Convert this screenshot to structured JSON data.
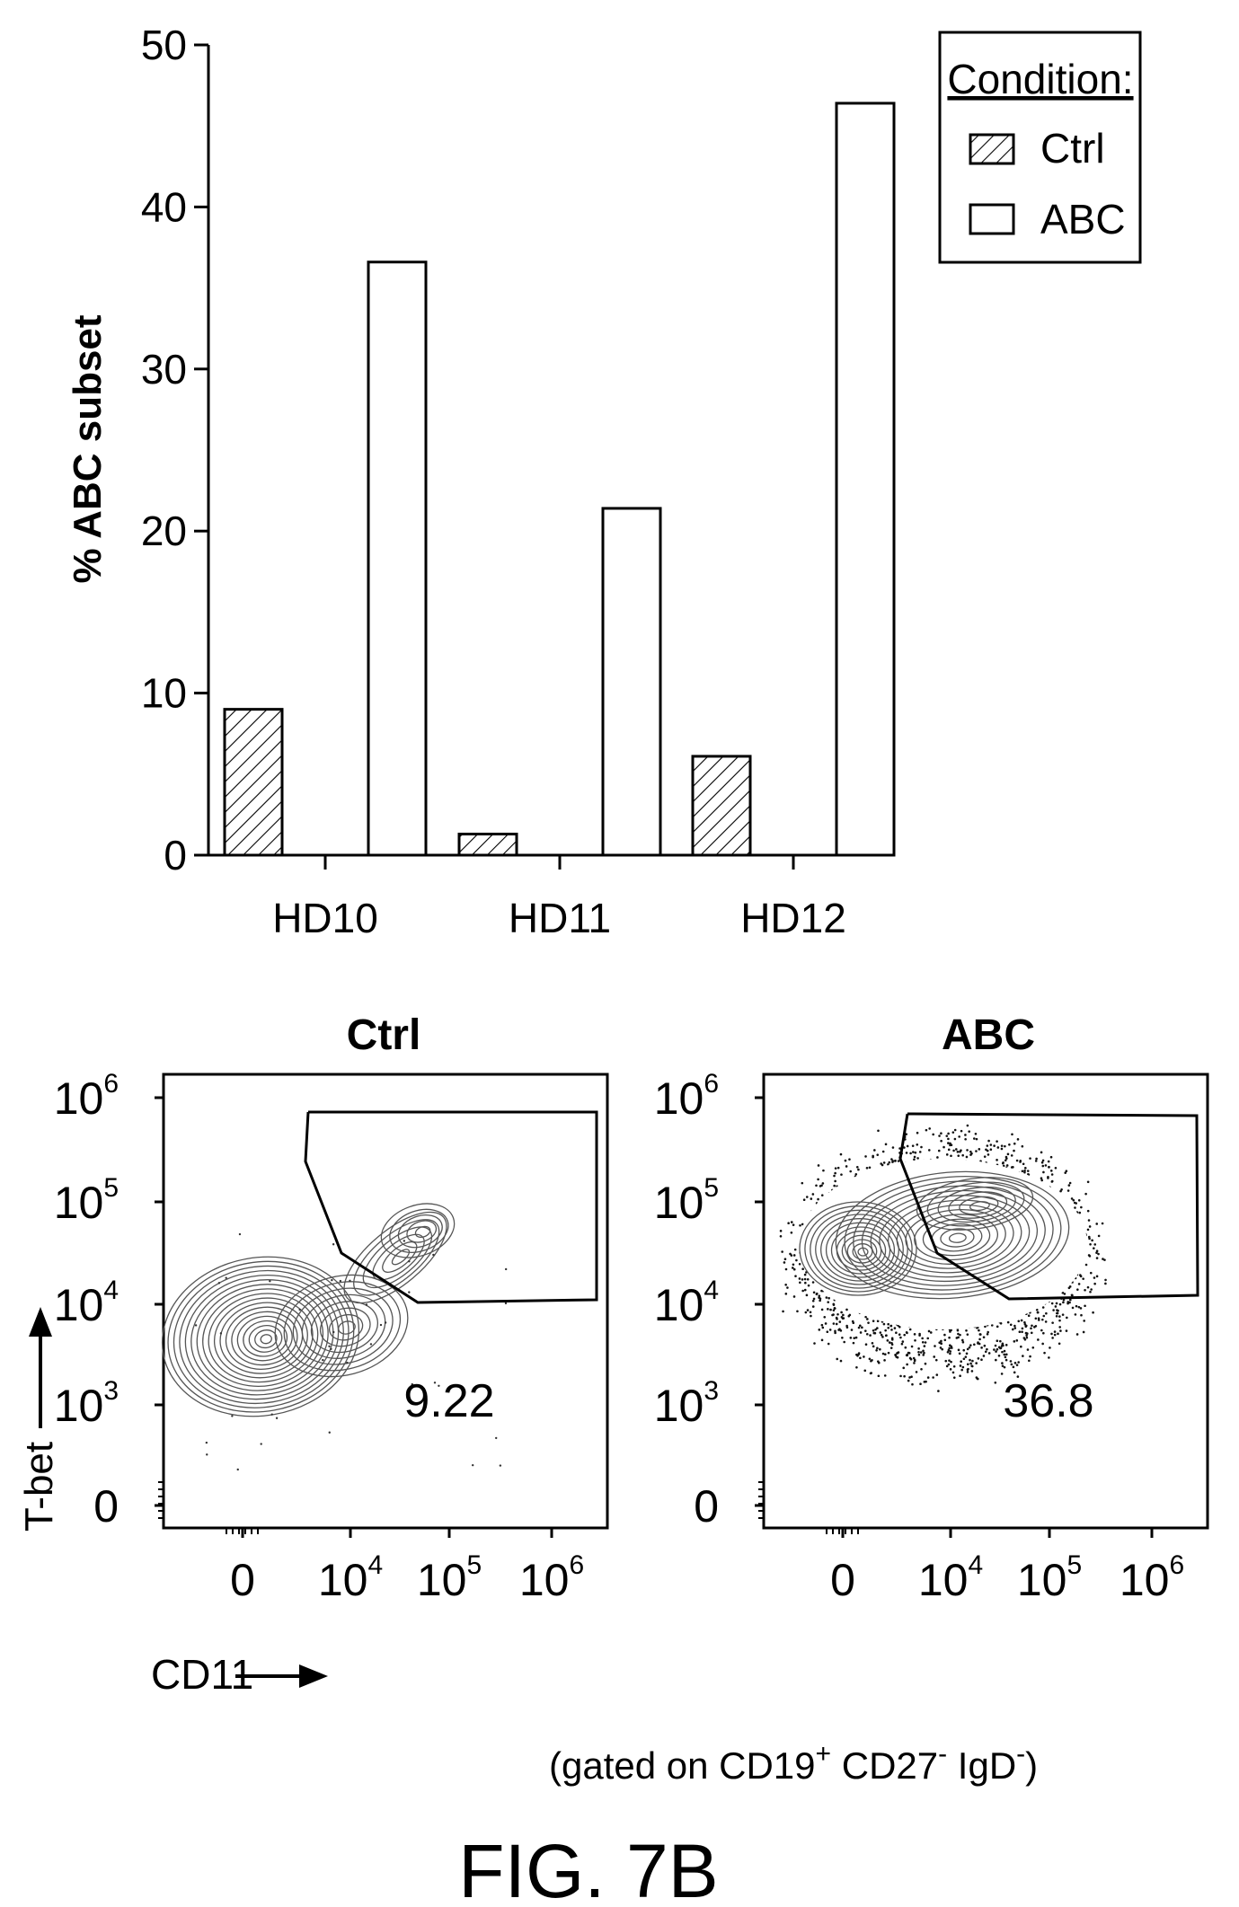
{
  "figure_label": "FIG. 7B",
  "chart_data": [
    {
      "type": "bar",
      "categories": [
        "HD10",
        "HD11",
        "HD12"
      ],
      "series": [
        {
          "name": "Ctrl",
          "values": [
            9.0,
            1.3,
            6.1
          ]
        },
        {
          "name": "ABC",
          "values": [
            36.6,
            21.4,
            46.4
          ]
        }
      ],
      "ylabel": "% ABC subset",
      "ylim": [
        0,
        50
      ],
      "yticks": [
        "0",
        "10",
        "20",
        "30",
        "40",
        "50"
      ],
      "legend": {
        "title": "Condition:",
        "position": "top-right",
        "entries": [
          "Ctrl",
          "ABC"
        ]
      },
      "grid": false
    },
    {
      "type": "contour",
      "panels": [
        {
          "title": "Ctrl",
          "gate_value": "9.22"
        },
        {
          "title": "ABC",
          "gate_value": "36.8"
        }
      ],
      "xlabel": "CD11",
      "ylabel": "T-bet",
      "x_tick_labels": [
        "0",
        "10",
        "10",
        "10"
      ],
      "x_tick_exps": [
        "",
        "4",
        "5",
        "6"
      ],
      "y_tick_labels": [
        "0",
        "10",
        "10",
        "10",
        "10"
      ],
      "y_tick_exps": [
        "",
        "3",
        "4",
        "5",
        "6"
      ],
      "gating_note": {
        "prefix": "(gated on CD19",
        "sup1": "+",
        "mid1": " CD27",
        "sup2": "-",
        "mid2": " IgD",
        "sup3": "-",
        "suffix": ")"
      }
    }
  ]
}
